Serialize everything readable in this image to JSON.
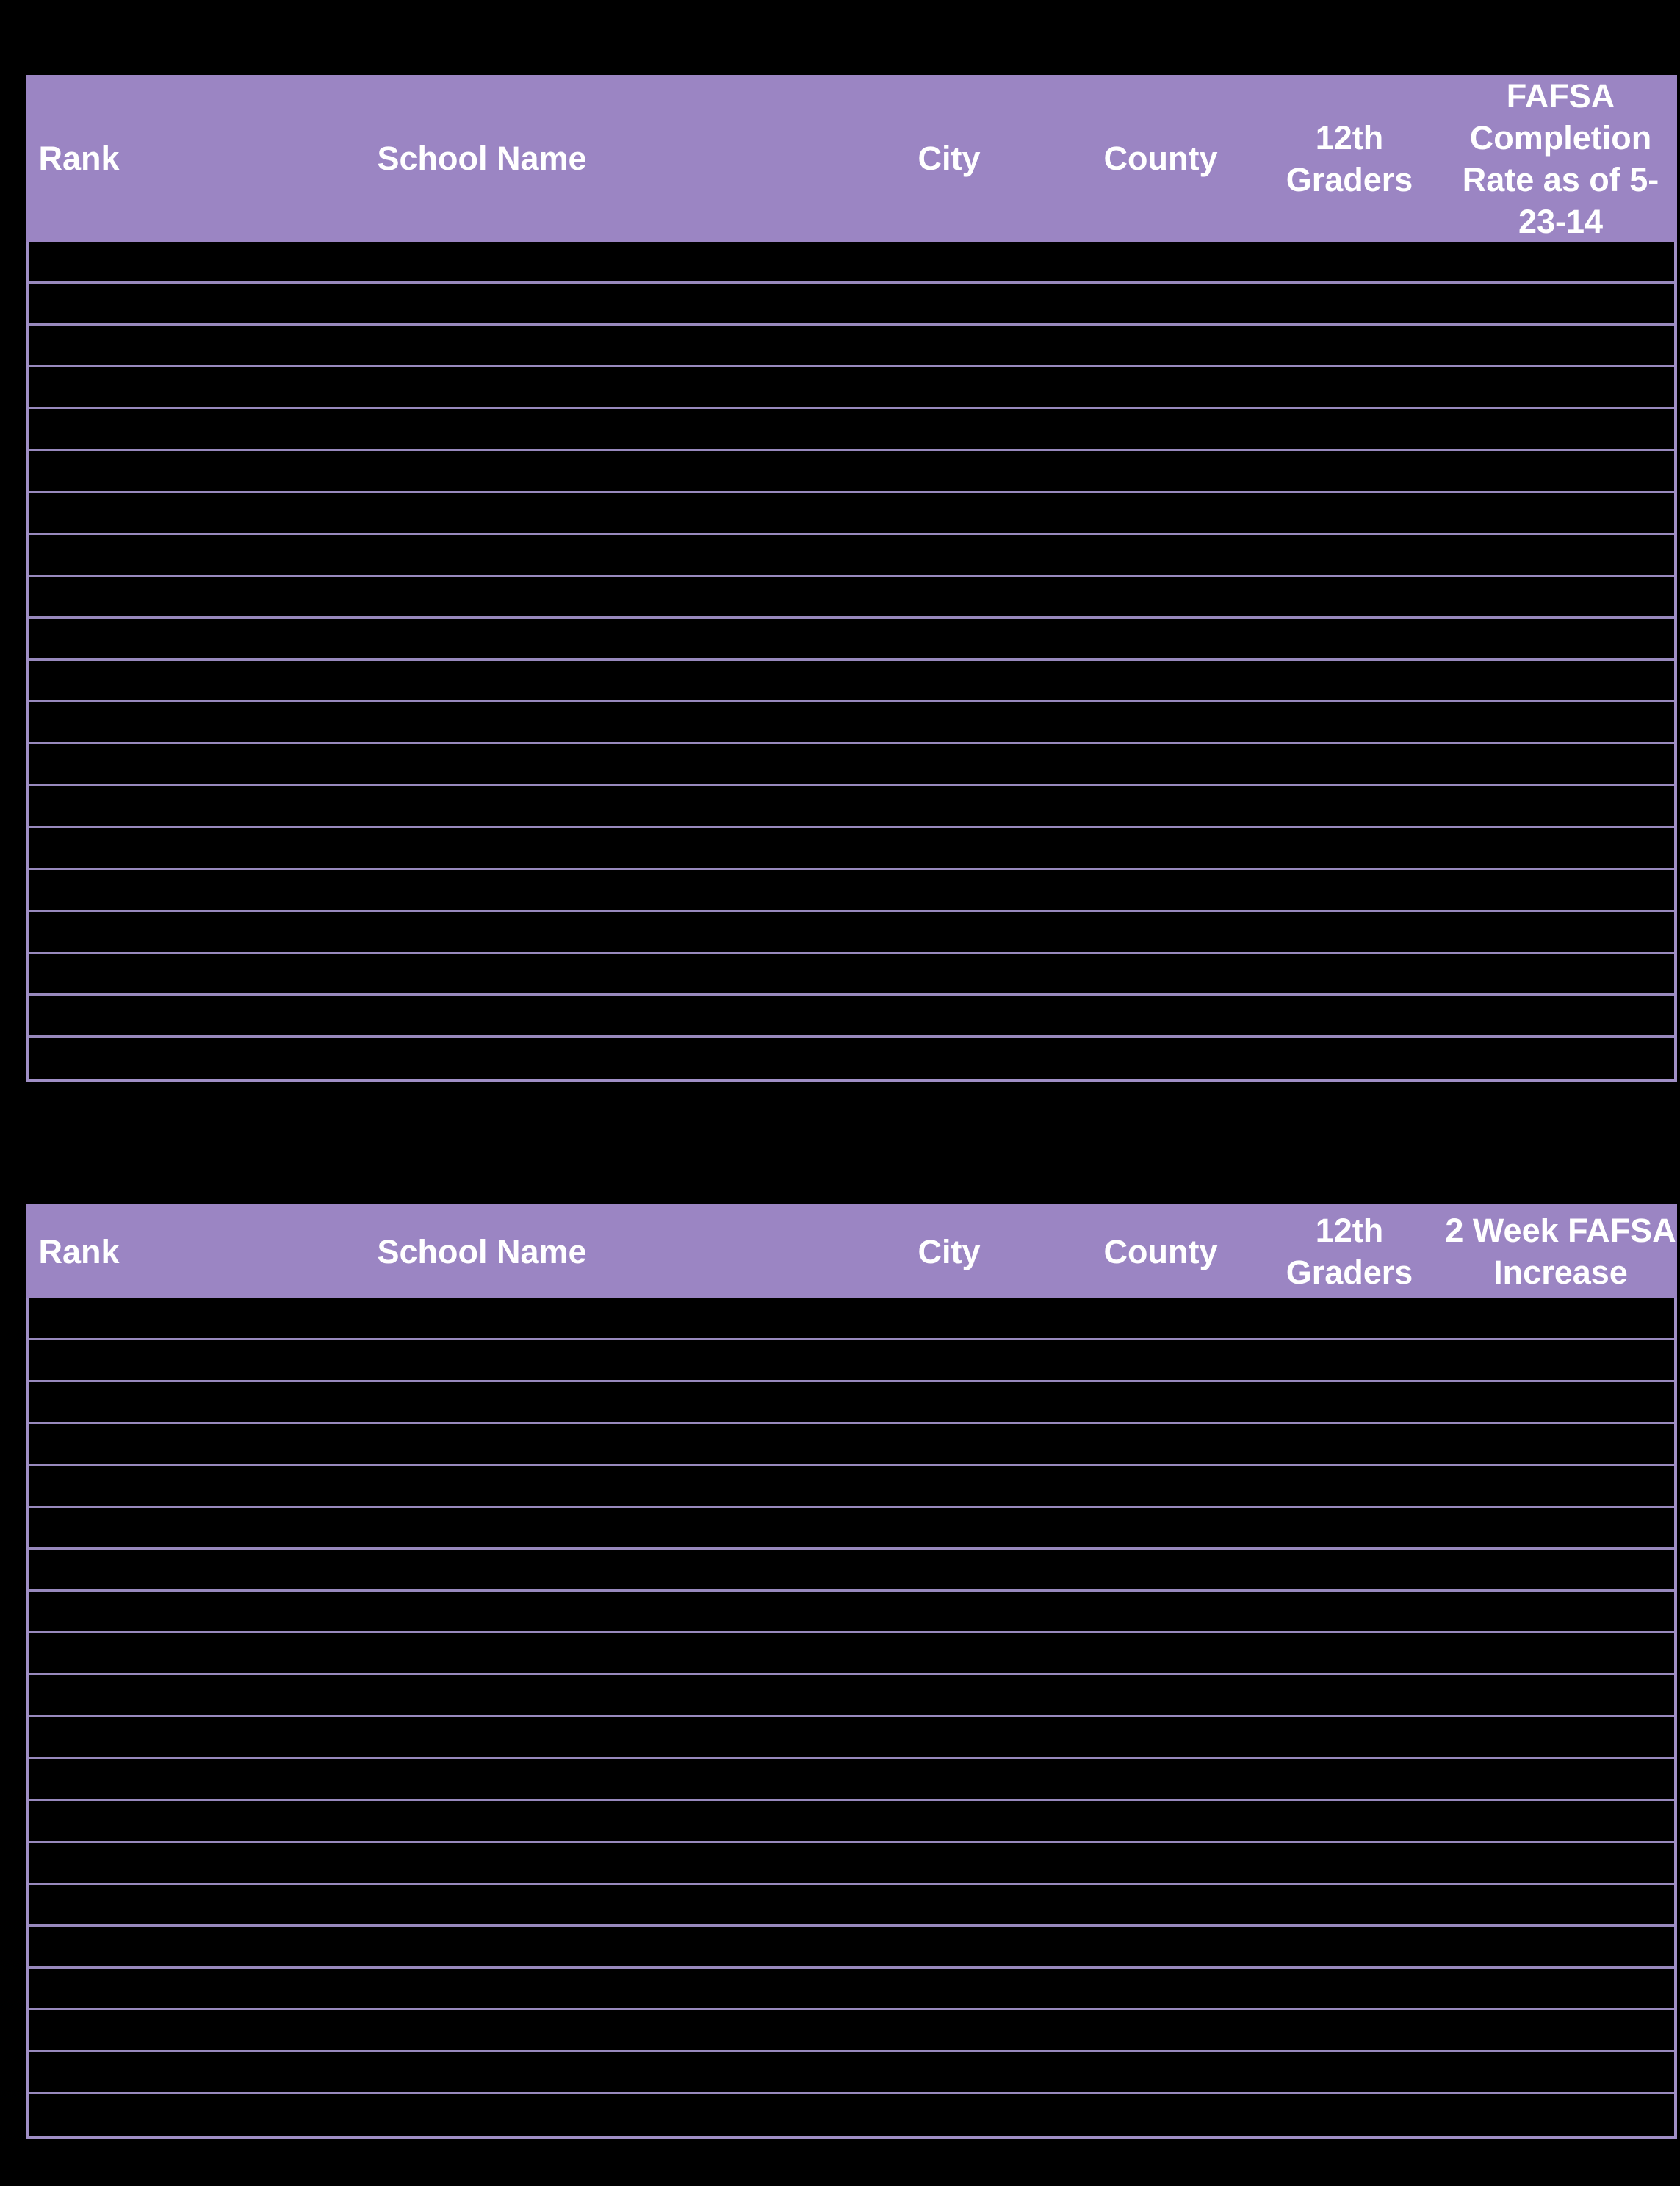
{
  "colors": {
    "background": "#000000",
    "header_fill": "#9b85c3",
    "header_text": "#ffffff",
    "grid_line": "#9889bd",
    "outer_border": "#a08fc6"
  },
  "tables": [
    {
      "id": "fafsa-completion",
      "columns": [
        {
          "key": "rank",
          "label": "Rank"
        },
        {
          "key": "school_name",
          "label": "School Name"
        },
        {
          "key": "city",
          "label": "City"
        },
        {
          "key": "county",
          "label": "County"
        },
        {
          "key": "twelfth_graders",
          "label": "12th Graders"
        },
        {
          "key": "fafsa_completion_rate",
          "label": "FAFSA Completion Rate as of 5-23-14"
        }
      ],
      "row_count": 20
    },
    {
      "id": "two-week-fafsa-increase",
      "columns": [
        {
          "key": "rank",
          "label": "Rank"
        },
        {
          "key": "school_name",
          "label": "School Name"
        },
        {
          "key": "city",
          "label": "City"
        },
        {
          "key": "county",
          "label": "County"
        },
        {
          "key": "twelfth_graders",
          "label": "12th Graders"
        },
        {
          "key": "two_week_fafsa_increase",
          "label": "2 Week FAFSA Increase"
        }
      ],
      "row_count": 20
    }
  ]
}
